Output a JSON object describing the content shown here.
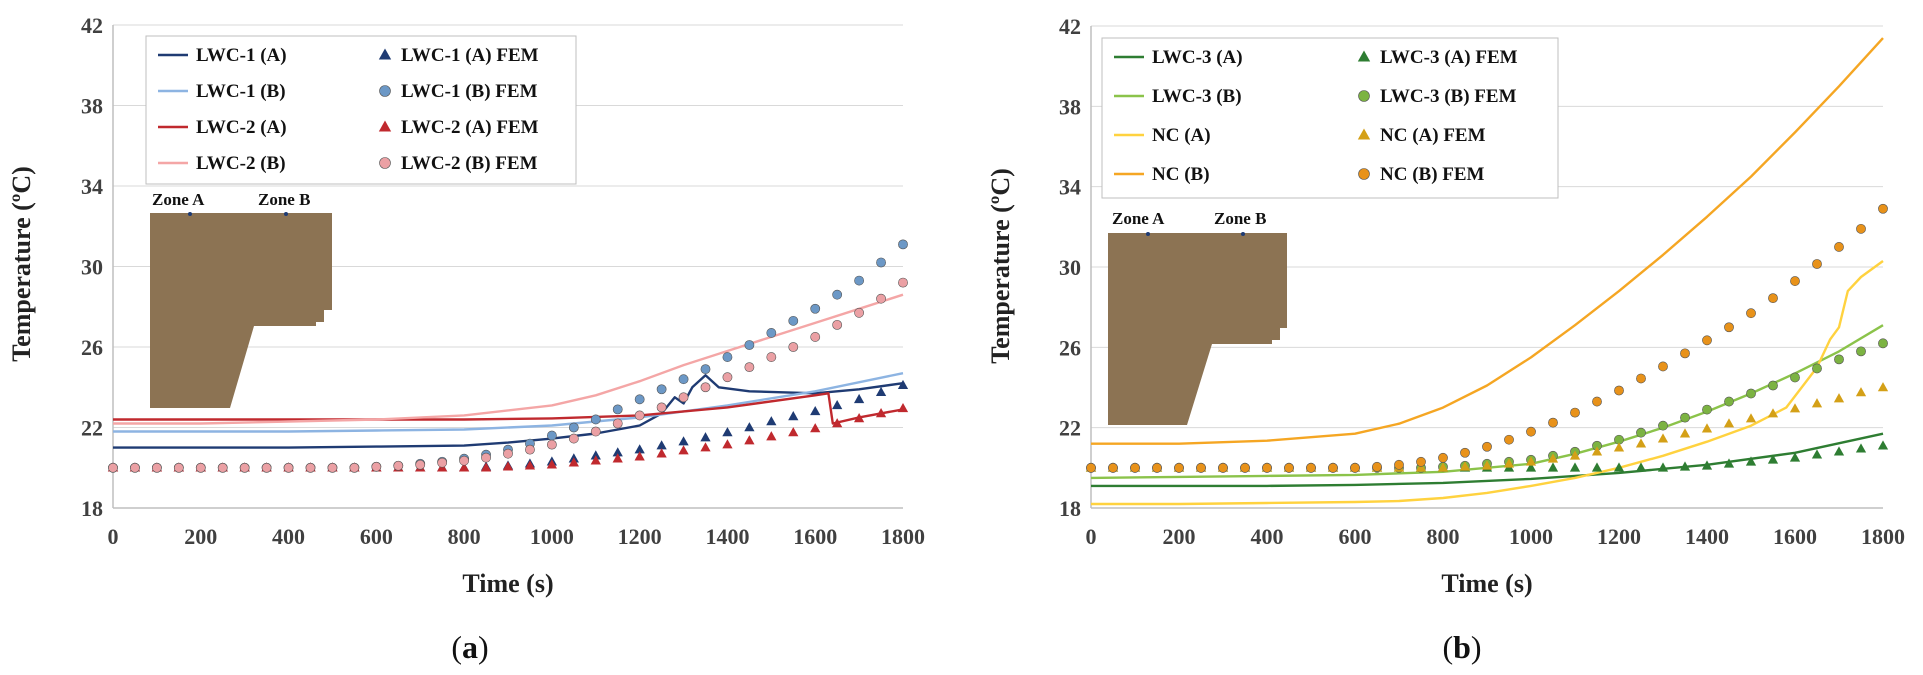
{
  "chart_data": [
    {
      "type": "line",
      "panel": "a",
      "xlabel": "Time (s)",
      "ylabel": "Temperature (ºC)",
      "xlim": [
        0,
        1800
      ],
      "ylim": [
        18,
        42
      ],
      "xticks": [
        0,
        200,
        400,
        600,
        800,
        1000,
        1200,
        1400,
        1600,
        1800
      ],
      "yticks": [
        18,
        22,
        26,
        30,
        34,
        38,
        42
      ],
      "legend_position": "top-left",
      "inset": {
        "labels": [
          "Zone A",
          "Zone B"
        ],
        "color": "#8C7353"
      },
      "series": [
        {
          "name": "LWC-1 (A)",
          "kind": "line",
          "color": "#1F3B73",
          "x": [
            0,
            200,
            400,
            600,
            800,
            900,
            1000,
            1100,
            1200,
            1250,
            1280,
            1300,
            1320,
            1350,
            1380,
            1450,
            1600,
            1700,
            1800
          ],
          "y": [
            21.0,
            21.0,
            21.0,
            21.05,
            21.1,
            21.25,
            21.45,
            21.7,
            22.1,
            22.7,
            23.5,
            23.2,
            24.0,
            24.6,
            24.0,
            23.8,
            23.7,
            23.9,
            24.2
          ]
        },
        {
          "name": "LWC-1 (B)",
          "kind": "line",
          "color": "#8DB4E2",
          "x": [
            0,
            200,
            400,
            600,
            800,
            1000,
            1200,
            1400,
            1600,
            1800
          ],
          "y": [
            21.8,
            21.8,
            21.8,
            21.85,
            21.9,
            22.1,
            22.5,
            23.1,
            23.8,
            24.7
          ]
        },
        {
          "name": "LWC-2 (A)",
          "kind": "line",
          "color": "#C0292E",
          "x": [
            0,
            200,
            400,
            600,
            800,
            1000,
            1200,
            1400,
            1600,
            1630,
            1640,
            1700,
            1800
          ],
          "y": [
            22.4,
            22.4,
            22.4,
            22.4,
            22.4,
            22.45,
            22.6,
            23.0,
            23.6,
            23.7,
            22.2,
            22.5,
            22.9
          ]
        },
        {
          "name": "LWC-2 (B)",
          "kind": "line",
          "color": "#F4A6A6",
          "x": [
            0,
            200,
            400,
            600,
            800,
            1000,
            1100,
            1200,
            1300,
            1400,
            1500,
            1600,
            1700,
            1800
          ],
          "y": [
            22.2,
            22.2,
            22.3,
            22.4,
            22.6,
            23.1,
            23.6,
            24.3,
            25.1,
            25.8,
            26.5,
            27.2,
            27.9,
            28.6
          ]
        },
        {
          "name": "LWC-1 (A) FEM",
          "kind": "triangle",
          "color": "#1F3B73",
          "x": [
            0,
            50,
            100,
            150,
            200,
            250,
            300,
            350,
            400,
            450,
            500,
            550,
            600,
            650,
            700,
            750,
            800,
            850,
            900,
            950,
            1000,
            1050,
            1100,
            1150,
            1200,
            1250,
            1300,
            1350,
            1400,
            1450,
            1500,
            1550,
            1600,
            1650,
            1700,
            1750,
            1800
          ],
          "y": [
            20.0,
            20.0,
            20.0,
            20.0,
            20.0,
            20.0,
            20.0,
            20.0,
            20.0,
            20.0,
            20.0,
            20.0,
            20.0,
            20.0,
            20.0,
            20.0,
            20.0,
            20.05,
            20.1,
            20.2,
            20.3,
            20.45,
            20.6,
            20.75,
            20.9,
            21.1,
            21.3,
            21.5,
            21.75,
            22.0,
            22.3,
            22.55,
            22.8,
            23.1,
            23.4,
            23.75,
            24.1
          ]
        },
        {
          "name": "LWC-1 (B) FEM",
          "kind": "circle",
          "color": "#6C98C6",
          "x": [
            0,
            50,
            100,
            150,
            200,
            250,
            300,
            350,
            400,
            450,
            500,
            550,
            600,
            650,
            700,
            750,
            800,
            850,
            900,
            950,
            1000,
            1050,
            1100,
            1150,
            1200,
            1250,
            1300,
            1350,
            1400,
            1450,
            1500,
            1550,
            1600,
            1650,
            1700,
            1750,
            1800
          ],
          "y": [
            20.0,
            20.0,
            20.0,
            20.0,
            20.0,
            20.0,
            20.0,
            20.0,
            20.0,
            20.0,
            20.0,
            20.0,
            20.05,
            20.1,
            20.2,
            20.3,
            20.45,
            20.65,
            20.9,
            21.2,
            21.6,
            22.0,
            22.4,
            22.9,
            23.4,
            23.9,
            24.4,
            24.9,
            25.5,
            26.1,
            26.7,
            27.3,
            27.9,
            28.6,
            29.3,
            30.2,
            31.1
          ]
        },
        {
          "name": "LWC-2 (A) FEM",
          "kind": "triangle",
          "color": "#C0292E",
          "x": [
            0,
            50,
            100,
            150,
            200,
            250,
            300,
            350,
            400,
            450,
            500,
            550,
            600,
            650,
            700,
            750,
            800,
            850,
            900,
            950,
            1000,
            1050,
            1100,
            1150,
            1200,
            1250,
            1300,
            1350,
            1400,
            1450,
            1500,
            1550,
            1600,
            1650,
            1700,
            1750,
            1800
          ],
          "y": [
            20.0,
            20.0,
            20.0,
            20.0,
            20.0,
            20.0,
            20.0,
            20.0,
            20.0,
            20.0,
            20.0,
            20.0,
            20.0,
            20.0,
            20.0,
            20.0,
            20.0,
            20.0,
            20.05,
            20.1,
            20.15,
            20.25,
            20.35,
            20.45,
            20.55,
            20.7,
            20.85,
            21.0,
            21.15,
            21.35,
            21.55,
            21.75,
            21.95,
            22.2,
            22.45,
            22.7,
            22.95
          ]
        },
        {
          "name": "LWC-2 (B) FEM",
          "kind": "circle",
          "color": "#EBA0A4",
          "x": [
            0,
            50,
            100,
            150,
            200,
            250,
            300,
            350,
            400,
            450,
            500,
            550,
            600,
            650,
            700,
            750,
            800,
            850,
            900,
            950,
            1000,
            1050,
            1100,
            1150,
            1200,
            1250,
            1300,
            1350,
            1400,
            1450,
            1500,
            1550,
            1600,
            1650,
            1700,
            1750,
            1800
          ],
          "y": [
            20.0,
            20.0,
            20.0,
            20.0,
            20.0,
            20.0,
            20.0,
            20.0,
            20.0,
            20.0,
            20.0,
            20.0,
            20.05,
            20.1,
            20.15,
            20.25,
            20.35,
            20.5,
            20.7,
            20.9,
            21.15,
            21.45,
            21.8,
            22.2,
            22.6,
            23.0,
            23.5,
            24.0,
            24.5,
            25.0,
            25.5,
            26.0,
            26.5,
            27.1,
            27.7,
            28.4,
            29.2
          ]
        }
      ]
    },
    {
      "type": "line",
      "panel": "b",
      "xlabel": "Time (s)",
      "ylabel": "Temperature (ºC)",
      "xlim": [
        0,
        1800
      ],
      "ylim": [
        18,
        42
      ],
      "xticks": [
        0,
        200,
        400,
        600,
        800,
        1000,
        1200,
        1400,
        1600,
        1800
      ],
      "yticks": [
        18,
        22,
        26,
        30,
        34,
        38,
        42
      ],
      "legend_position": "top-left",
      "inset": {
        "labels": [
          "Zone A",
          "Zone B"
        ],
        "color": "#8C7353"
      },
      "series": [
        {
          "name": "LWC-3 (A)",
          "kind": "line",
          "color": "#2E7D32",
          "x": [
            0,
            200,
            400,
            600,
            800,
            1000,
            1200,
            1400,
            1600,
            1800
          ],
          "y": [
            19.1,
            19.1,
            19.1,
            19.15,
            19.25,
            19.45,
            19.75,
            20.15,
            20.75,
            21.7
          ]
        },
        {
          "name": "LWC-3 (B)",
          "kind": "line",
          "color": "#8BC34A",
          "x": [
            0,
            200,
            400,
            600,
            800,
            1000,
            1100,
            1200,
            1300,
            1400,
            1500,
            1600,
            1700,
            1800
          ],
          "y": [
            19.5,
            19.55,
            19.6,
            19.65,
            19.8,
            20.2,
            20.7,
            21.3,
            22.0,
            22.8,
            23.7,
            24.7,
            25.8,
            27.1
          ]
        },
        {
          "name": "NC (A)",
          "kind": "line",
          "color": "#FFD23F",
          "x": [
            0,
            200,
            400,
            600,
            700,
            800,
            900,
            1000,
            1100,
            1200,
            1300,
            1400,
            1500,
            1580,
            1650,
            1680,
            1700,
            1720,
            1750,
            1800
          ],
          "y": [
            18.2,
            18.2,
            18.25,
            18.3,
            18.35,
            18.5,
            18.75,
            19.1,
            19.5,
            20.0,
            20.6,
            21.3,
            22.1,
            23.0,
            25.0,
            26.4,
            27.0,
            28.8,
            29.5,
            30.3
          ]
        },
        {
          "name": "NC (B)",
          "kind": "line",
          "color": "#F5A623",
          "x": [
            0,
            200,
            400,
            600,
            700,
            800,
            900,
            1000,
            1100,
            1200,
            1300,
            1400,
            1500,
            1600,
            1700,
            1800
          ],
          "y": [
            21.2,
            21.2,
            21.35,
            21.7,
            22.2,
            23.0,
            24.1,
            25.5,
            27.1,
            28.8,
            30.6,
            32.5,
            34.5,
            36.7,
            39.0,
            41.4
          ]
        },
        {
          "name": "LWC-3 (A) FEM",
          "kind": "triangle",
          "color": "#2E7D32",
          "x": [
            0,
            50,
            100,
            150,
            200,
            250,
            300,
            350,
            400,
            450,
            500,
            550,
            600,
            650,
            700,
            750,
            800,
            850,
            900,
            950,
            1000,
            1050,
            1100,
            1150,
            1200,
            1250,
            1300,
            1350,
            1400,
            1450,
            1500,
            1550,
            1600,
            1650,
            1700,
            1750,
            1800
          ],
          "y": [
            20.0,
            20.0,
            20.0,
            20.0,
            20.0,
            20.0,
            20.0,
            20.0,
            20.0,
            20.0,
            20.0,
            20.0,
            20.0,
            20.0,
            20.0,
            20.0,
            20.0,
            20.0,
            20.0,
            20.0,
            20.0,
            20.0,
            20.0,
            20.0,
            20.0,
            20.0,
            20.0,
            20.05,
            20.1,
            20.2,
            20.3,
            20.4,
            20.5,
            20.65,
            20.8,
            20.95,
            21.1
          ]
        },
        {
          "name": "LWC-3 (B) FEM",
          "kind": "circle",
          "color": "#7CB342",
          "x": [
            0,
            50,
            100,
            150,
            200,
            250,
            300,
            350,
            400,
            450,
            500,
            550,
            600,
            650,
            700,
            750,
            800,
            850,
            900,
            950,
            1000,
            1050,
            1100,
            1150,
            1200,
            1250,
            1300,
            1350,
            1400,
            1450,
            1500,
            1550,
            1600,
            1650,
            1700,
            1750,
            1800
          ],
          "y": [
            20.0,
            20.0,
            20.0,
            20.0,
            20.0,
            20.0,
            20.0,
            20.0,
            20.0,
            20.0,
            20.0,
            20.0,
            20.0,
            20.0,
            20.0,
            20.0,
            20.05,
            20.1,
            20.2,
            20.3,
            20.4,
            20.6,
            20.8,
            21.1,
            21.4,
            21.75,
            22.1,
            22.5,
            22.9,
            23.3,
            23.7,
            24.1,
            24.5,
            24.95,
            25.4,
            25.8,
            26.2
          ]
        },
        {
          "name": "NC (A) FEM",
          "kind": "triangle",
          "color": "#D4A017",
          "x": [
            0,
            50,
            100,
            150,
            200,
            250,
            300,
            350,
            400,
            450,
            500,
            550,
            600,
            650,
            700,
            750,
            800,
            850,
            900,
            950,
            1000,
            1050,
            1100,
            1150,
            1200,
            1250,
            1300,
            1350,
            1400,
            1450,
            1500,
            1550,
            1600,
            1650,
            1700,
            1750,
            1800
          ],
          "y": [
            20.0,
            20.0,
            20.0,
            20.0,
            20.0,
            20.0,
            20.0,
            20.0,
            20.0,
            20.0,
            20.0,
            20.0,
            20.0,
            20.0,
            20.0,
            20.0,
            20.0,
            20.05,
            20.1,
            20.2,
            20.3,
            20.45,
            20.6,
            20.8,
            21.0,
            21.2,
            21.45,
            21.7,
            21.95,
            22.2,
            22.45,
            22.7,
            22.95,
            23.2,
            23.45,
            23.75,
            24.0
          ]
        },
        {
          "name": "NC (B) FEM",
          "kind": "circle",
          "color": "#E8921A",
          "x": [
            0,
            50,
            100,
            150,
            200,
            250,
            300,
            350,
            400,
            450,
            500,
            550,
            600,
            650,
            700,
            750,
            800,
            850,
            900,
            950,
            1000,
            1050,
            1100,
            1150,
            1200,
            1250,
            1300,
            1350,
            1400,
            1450,
            1500,
            1550,
            1600,
            1650,
            1700,
            1750,
            1800
          ],
          "y": [
            20.0,
            20.0,
            20.0,
            20.0,
            20.0,
            20.0,
            20.0,
            20.0,
            20.0,
            20.0,
            20.0,
            20.0,
            20.0,
            20.05,
            20.15,
            20.3,
            20.5,
            20.75,
            21.05,
            21.4,
            21.8,
            22.25,
            22.75,
            23.3,
            23.85,
            24.45,
            25.05,
            25.7,
            26.35,
            27.0,
            27.7,
            28.45,
            29.3,
            30.15,
            31.0,
            31.9,
            32.9
          ]
        }
      ]
    }
  ],
  "panel_labels": {
    "a_open": "(",
    "a": "a",
    "a_close": ")",
    "b_open": "(",
    "b": "b",
    "b_close": ")"
  }
}
